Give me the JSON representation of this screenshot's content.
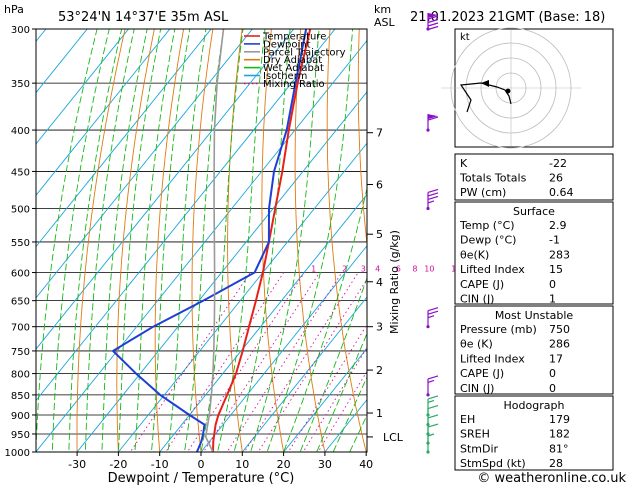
{
  "header": {
    "location": "53°24'N  14°37'E  35m  ASL",
    "datetime": "21.01.2023  21GMT  (Base: 18)",
    "hpa_label": "hPa",
    "km_label": "km",
    "asl_label": "ASL",
    "footer": "© weatheronline.co.uk"
  },
  "colors": {
    "temperature": "#e8201a",
    "dewpoint": "#1e3fd6",
    "parcel": "#9a9a9a",
    "dry_adiabat": "#e07a10",
    "wet_adiabat": "#16b816",
    "isotherm": "#19a7dc",
    "mixing_ratio": "#d0109a",
    "wind": "#8a10c8"
  },
  "legend": [
    {
      "label": "Temperature",
      "color": "#e8201a",
      "style": "solid"
    },
    {
      "label": "Dewpoint",
      "color": "#1e3fd6",
      "style": "solid"
    },
    {
      "label": "Parcel Trajectory",
      "color": "#9a9a9a",
      "style": "solid"
    },
    {
      "label": "Dry Adiabat",
      "color": "#e07a10",
      "style": "solid"
    },
    {
      "label": "Wet Adiabat",
      "color": "#16b816",
      "style": "solid"
    },
    {
      "label": "Isotherm",
      "color": "#19a7dc",
      "style": "solid"
    },
    {
      "label": "Mixing Ratio",
      "color": "#d0109a",
      "style": "dotted"
    }
  ],
  "chart_data": {
    "type": "line",
    "title": "",
    "xlabel": "Dewpoint / Temperature (°C)",
    "ylabel": "",
    "right_axis_label": "Mixing Ratio (g/kg)",
    "xlim": [
      -35,
      40
    ],
    "ylim": [
      1000,
      300
    ],
    "y_scale": "log",
    "x_ticks": [
      -30,
      -20,
      -10,
      0,
      10,
      20,
      30,
      40
    ],
    "pressure_ticks": [
      300,
      350,
      400,
      450,
      500,
      550,
      600,
      650,
      700,
      750,
      800,
      850,
      900,
      950,
      1000
    ],
    "km_ticks": [
      {
        "label": "7",
        "p": 403
      },
      {
        "label": "6",
        "p": 467
      },
      {
        "label": "5",
        "p": 538
      },
      {
        "label": "4",
        "p": 616
      },
      {
        "label": "3",
        "p": 700
      },
      {
        "label": "2",
        "p": 792
      },
      {
        "label": "1",
        "p": 895
      }
    ],
    "lcl": {
      "label": "LCL",
      "p": 958
    },
    "mixing_ratio_labels": [
      {
        "label": "1",
        "p": 593,
        "t": -8.5
      },
      {
        "label": "2",
        "p": 593,
        "t": -1
      },
      {
        "label": "3",
        "p": 593,
        "t": 3.5
      },
      {
        "label": "4",
        "p": 593,
        "t": 7
      },
      {
        "label": "6",
        "p": 593,
        "t": 12
      },
      {
        "label": "8",
        "p": 593,
        "t": 16
      },
      {
        "label": "10",
        "p": 593,
        "t": 19.5
      },
      {
        "label": "16",
        "p": 593,
        "t": 26
      },
      {
        "label": "20",
        "p": 593,
        "t": 29.5
      },
      {
        "label": "25",
        "p": 593,
        "t": 33
      }
    ],
    "series": [
      {
        "name": "Temperature",
        "color": "#e8201a",
        "points": [
          [
            1000,
            2.9
          ],
          [
            970,
            0.9
          ],
          [
            950,
            -0.3
          ],
          [
            925,
            -1.8
          ],
          [
            900,
            -3.0
          ],
          [
            850,
            -4.8
          ],
          [
            800,
            -6.8
          ],
          [
            750,
            -9.6
          ],
          [
            700,
            -12.8
          ],
          [
            650,
            -16.2
          ],
          [
            600,
            -20
          ],
          [
            550,
            -24.5
          ],
          [
            500,
            -29.5
          ],
          [
            450,
            -35
          ],
          [
            400,
            -41.5
          ],
          [
            350,
            -48.5
          ],
          [
            300,
            -56
          ]
        ]
      },
      {
        "name": "Dewpoint",
        "color": "#1e3fd6",
        "points": [
          [
            1000,
            -1
          ],
          [
            970,
            -2
          ],
          [
            950,
            -3
          ],
          [
            925,
            -4.5
          ],
          [
            900,
            -10
          ],
          [
            850,
            -21
          ],
          [
            800,
            -31
          ],
          [
            750,
            -41
          ],
          [
            700,
            -36
          ],
          [
            650,
            -29
          ],
          [
            600,
            -22
          ],
          [
            550,
            -24.5
          ],
          [
            500,
            -31
          ],
          [
            450,
            -37
          ],
          [
            400,
            -42
          ],
          [
            350,
            -49
          ],
          [
            300,
            -57
          ]
        ]
      },
      {
        "name": "Parcel Trajectory",
        "color": "#9a9a9a",
        "points": [
          [
            1000,
            2.9
          ],
          [
            958,
            -1.8
          ],
          [
            900,
            -5.2
          ],
          [
            850,
            -8.6
          ],
          [
            800,
            -12.4
          ],
          [
            750,
            -16.6
          ],
          [
            700,
            -21.2
          ],
          [
            650,
            -26.2
          ],
          [
            600,
            -31.7
          ],
          [
            550,
            -37.7
          ],
          [
            500,
            -44.3
          ],
          [
            450,
            -51.5
          ],
          [
            400,
            -59.5
          ],
          [
            350,
            -68
          ],
          [
            300,
            -77
          ]
        ]
      }
    ],
    "grid": true
  },
  "wind_barbs": [
    {
      "p": 300,
      "speed": 90
    },
    {
      "p": 400,
      "speed": 60
    },
    {
      "p": 500,
      "speed": 35
    },
    {
      "p": 700,
      "speed": 25
    },
    {
      "p": 850,
      "speed": 15
    },
    {
      "p": 900,
      "speed": 15
    },
    {
      "p": 925,
      "speed": 10
    },
    {
      "p": 950,
      "speed": 10
    },
    {
      "p": 975,
      "speed": 10
    },
    {
      "p": 1000,
      "speed": 5
    }
  ],
  "hodograph": {
    "label": "kt"
  },
  "indices_top": [
    {
      "label": "K",
      "value": "-22"
    },
    {
      "label": "Totals Totals",
      "value": "26"
    },
    {
      "label": "PW (cm)",
      "value": "0.64"
    }
  ],
  "surface": {
    "title": "Surface",
    "rows": [
      {
        "label": "Temp (°C)",
        "value": "2.9"
      },
      {
        "label": "Dewp (°C)",
        "value": "-1"
      },
      {
        "label": "θe(K)",
        "value": "283"
      },
      {
        "label": "Lifted Index",
        "value": "15"
      },
      {
        "label": "CAPE (J)",
        "value": "0"
      },
      {
        "label": "CIN (J)",
        "value": "1"
      }
    ]
  },
  "most_unstable": {
    "title": "Most Unstable",
    "rows": [
      {
        "label": "Pressure (mb)",
        "value": "750"
      },
      {
        "label": "θe (K)",
        "value": "286"
      },
      {
        "label": "Lifted Index",
        "value": "17"
      },
      {
        "label": "CAPE (J)",
        "value": "0"
      },
      {
        "label": "CIN (J)",
        "value": "0"
      }
    ]
  },
  "hodograph_table": {
    "title": "Hodograph",
    "rows": [
      {
        "label": "EH",
        "value": "179"
      },
      {
        "label": "SREH",
        "value": "182"
      },
      {
        "label": "StmDir",
        "value": "81°"
      },
      {
        "label": "StmSpd (kt)",
        "value": "28"
      }
    ]
  }
}
